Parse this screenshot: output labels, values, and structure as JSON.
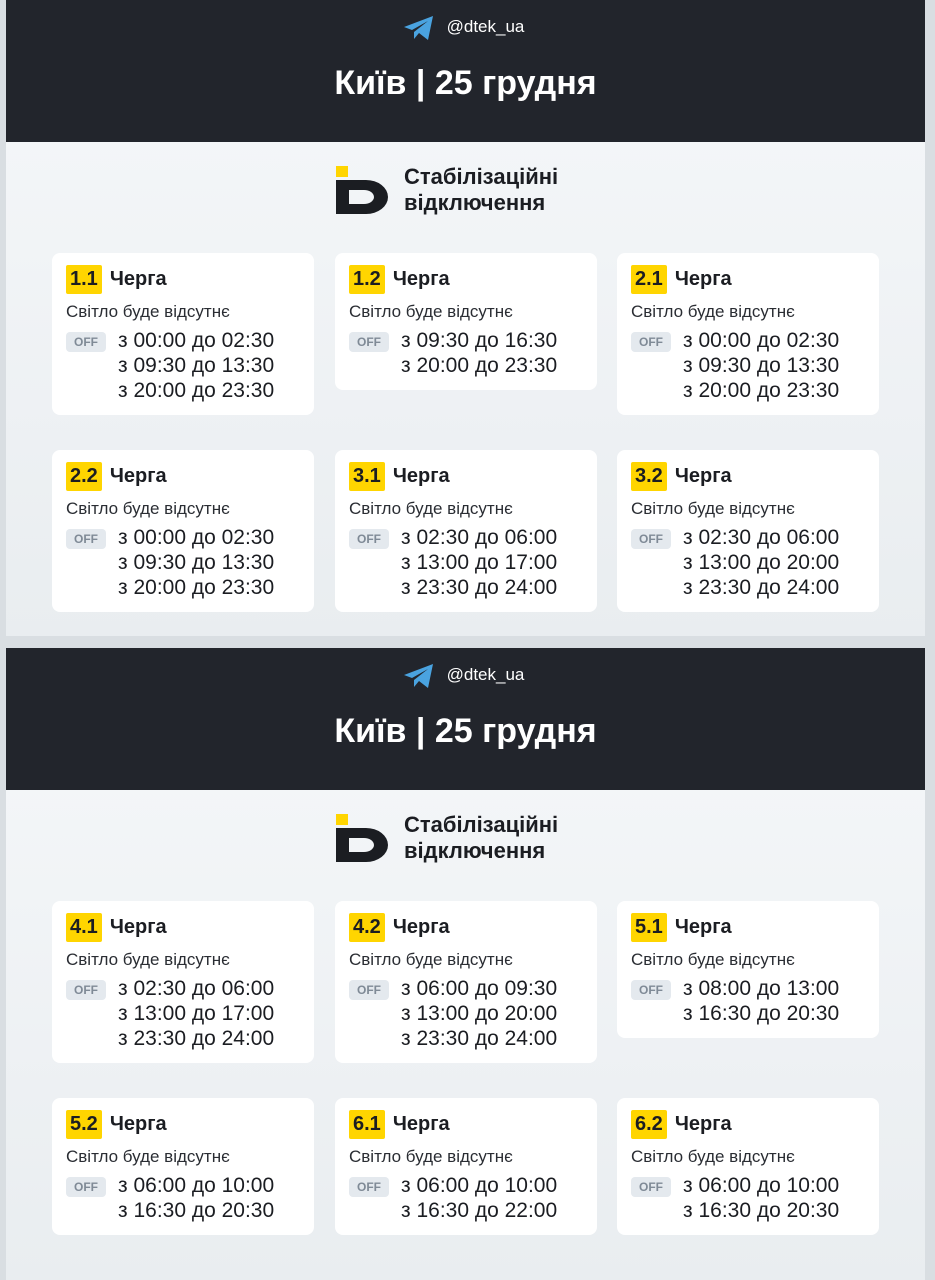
{
  "panels": [
    {
      "handle": "@dtek_ua",
      "title": "Київ | 25 грудня",
      "brand_lines": [
        "Стабілізаційні",
        "відключення"
      ],
      "cards": [
        {
          "group": "1.1",
          "label": "Черга",
          "status": "Світло буде відсутнє",
          "badge": "OFF",
          "times": [
            "з 00:00 до 02:30",
            "з 09:30 до 13:30",
            "з 20:00 до 23:30"
          ]
        },
        {
          "group": "1.2",
          "label": "Черга",
          "status": "Світло буде відсутнє",
          "badge": "OFF",
          "times": [
            "з 09:30 до 16:30",
            "з 20:00 до 23:30"
          ]
        },
        {
          "group": "2.1",
          "label": "Черга",
          "status": "Світло буде відсутнє",
          "badge": "OFF",
          "times": [
            "з 00:00 до 02:30",
            "з 09:30 до 13:30",
            "з 20:00 до 23:30"
          ]
        },
        {
          "group": "2.2",
          "label": "Черга",
          "status": "Світло буде відсутнє",
          "badge": "OFF",
          "times": [
            "з 00:00 до 02:30",
            "з 09:30 до 13:30",
            "з 20:00 до 23:30"
          ]
        },
        {
          "group": "3.1",
          "label": "Черга",
          "status": "Світло буде відсутнє",
          "badge": "OFF",
          "times": [
            "з 02:30 до 06:00",
            "з 13:00 до 17:00",
            "з 23:30 до 24:00"
          ]
        },
        {
          "group": "3.2",
          "label": "Черга",
          "status": "Світло буде відсутнє",
          "badge": "OFF",
          "times": [
            "з 02:30 до 06:00",
            "з 13:00 до 20:00",
            "з 23:30 до 24:00"
          ]
        }
      ]
    },
    {
      "handle": "@dtek_ua",
      "title": "Київ | 25 грудня",
      "brand_lines": [
        "Стабілізаційні",
        "відключення"
      ],
      "cards": [
        {
          "group": "4.1",
          "label": "Черга",
          "status": "Світло буде відсутнє",
          "badge": "OFF",
          "times": [
            "з 02:30 до 06:00",
            "з 13:00 до 17:00",
            "з 23:30 до 24:00"
          ]
        },
        {
          "group": "4.2",
          "label": "Черга",
          "status": "Світло буде відсутнє",
          "badge": "OFF",
          "times": [
            "з 06:00 до 09:30",
            "з 13:00 до 20:00",
            "з 23:30 до 24:00"
          ]
        },
        {
          "group": "5.1",
          "label": "Черга",
          "status": "Світло буде відсутнє",
          "badge": "OFF",
          "times": [
            "з 08:00 до 13:00",
            "з 16:30 до 20:30"
          ]
        },
        {
          "group": "5.2",
          "label": "Черга",
          "status": "Світло буде відсутнє",
          "badge": "OFF",
          "times": [
            "з 06:00 до 10:00",
            "з 16:30 до 20:30"
          ]
        },
        {
          "group": "6.1",
          "label": "Черга",
          "status": "Світло буде відсутнє",
          "badge": "OFF",
          "times": [
            "з 06:00 до 10:00",
            "з 16:30 до 22:00"
          ]
        },
        {
          "group": "6.2",
          "label": "Черга",
          "status": "Світло буде відсутнє",
          "badge": "OFF",
          "times": [
            "з 06:00 до 10:00",
            "з 16:30 до 20:30"
          ]
        }
      ]
    }
  ]
}
